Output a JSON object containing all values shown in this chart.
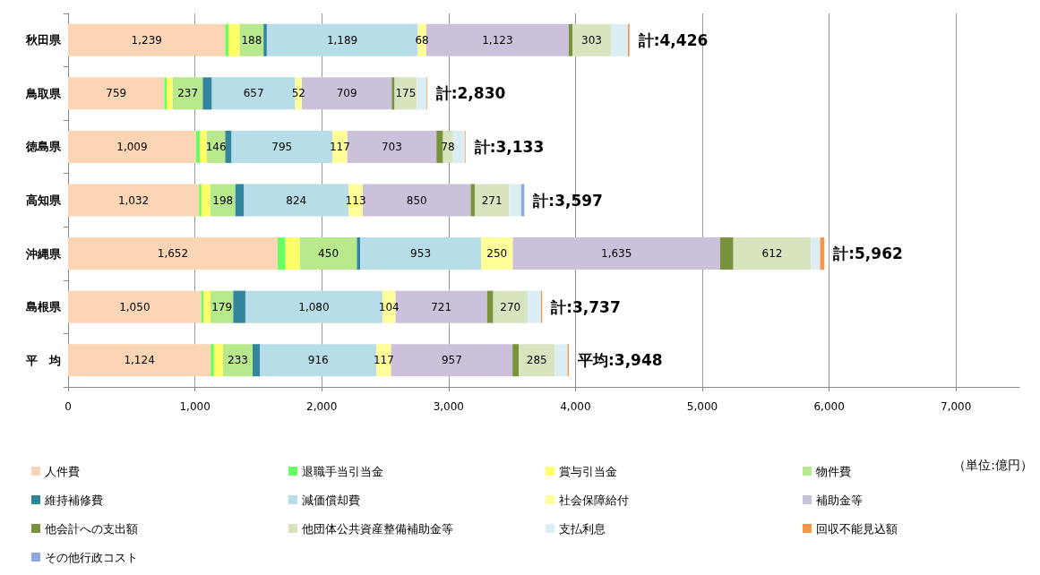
{
  "chart_data": {
    "type": "bar",
    "orientation": "horizontal",
    "stacked": true,
    "categories": [
      "秋田県",
      "鳥取県",
      "徳島県",
      "高知県",
      "沖縄県",
      "島根県",
      "平　均"
    ],
    "series": [
      {
        "name": "人件費",
        "color": "#fcd5b5",
        "values": [
          1239,
          759,
          1009,
          1032,
          1652,
          1050,
          1124
        ],
        "value_labels": [
          "1,239",
          "759",
          "1,009",
          "1,032",
          "1,652",
          "1,050",
          "1,124"
        ]
      },
      {
        "name": "退職手当引当金",
        "color": "#66ff66",
        "values": [
          26,
          18,
          30,
          19,
          62,
          17,
          26
        ]
      },
      {
        "name": "賞与引当金",
        "color": "#ffff66",
        "values": [
          88,
          48,
          54,
          70,
          113,
          56,
          72
        ]
      },
      {
        "name": "物件費",
        "color": "#b8e98c",
        "values": [
          188,
          237,
          146,
          198,
          450,
          179,
          233
        ],
        "value_labels": [
          "188",
          "237",
          "146",
          "198",
          "450",
          "179",
          "233"
        ]
      },
      {
        "name": "維持補修費",
        "color": "#31859c",
        "values": [
          26,
          72,
          50,
          68,
          26,
          96,
          59
        ]
      },
      {
        "name": "減価償却費",
        "color": "#b7dde8",
        "values": [
          1189,
          657,
          795,
          824,
          953,
          1080,
          916
        ],
        "value_labels": [
          "1,189",
          "657",
          "795",
          "824",
          "953",
          "1,080",
          "916"
        ]
      },
      {
        "name": "社会保障給付",
        "color": "#ffff99",
        "values": [
          68,
          52,
          117,
          113,
          250,
          104,
          117
        ],
        "value_labels": [
          "68",
          "52",
          "117",
          "113",
          "250",
          "104",
          "117"
        ]
      },
      {
        "name": "補助金等",
        "color": "#ccc1da",
        "values": [
          1123,
          709,
          703,
          850,
          1635,
          721,
          957
        ],
        "value_labels": [
          "1,123",
          "709",
          "703",
          "850",
          "1,635",
          "721",
          "957"
        ]
      },
      {
        "name": "他会計への支出額",
        "color": "#77933c",
        "values": [
          29,
          22,
          52,
          32,
          104,
          49,
          49
        ]
      },
      {
        "name": "他団体公共資産整備補助金等",
        "color": "#d7e4bd",
        "values": [
          303,
          175,
          78,
          271,
          612,
          270,
          285
        ],
        "value_labels": [
          "303",
          "175",
          "78",
          "271",
          "612",
          "270",
          "285"
        ]
      },
      {
        "name": "支払利息",
        "color": "#dbeef4",
        "values": [
          135,
          76,
          94,
          95,
          72,
          106,
          100
        ]
      },
      {
        "name": "回収不能見込額",
        "color": "#f79646",
        "values": [
          12,
          5,
          5,
          null,
          33,
          9,
          10
        ]
      },
      {
        "name": "その他行政コスト",
        "color": "#8ea9db",
        "values": [
          null,
          null,
          null,
          25,
          null,
          null,
          null
        ]
      }
    ],
    "totals": [
      "計:4,426",
      "計:2,830",
      "計:3,133",
      "計:3,597",
      "計:5,962",
      "計:3,737",
      "平均:3,948"
    ],
    "xlim": [
      0,
      7500
    ],
    "xticks": [
      0,
      {
        "value": 1000,
        "label": "1,000"
      },
      {
        "value": 2000,
        "label": "2,000"
      },
      {
        "value": 3000,
        "label": "3,000"
      },
      {
        "value": 4000,
        "label": "4,000"
      },
      {
        "value": 5000,
        "label": "5,000"
      },
      {
        "value": 6000,
        "label": "6,000"
      },
      {
        "value": 7000,
        "label": "7,000"
      }
    ],
    "grid": "x",
    "legend": "bottom",
    "annotations": [
      "（単位:億円）"
    ]
  }
}
